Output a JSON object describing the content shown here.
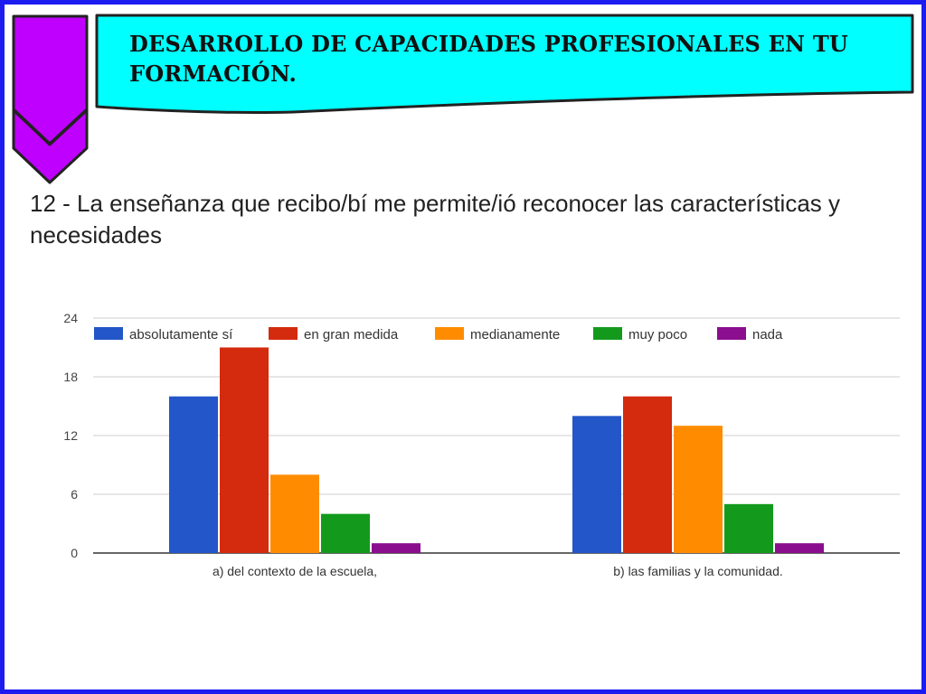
{
  "banner": {
    "title": "DESARROLLO DE CAPACIDADES PROFESIONALES EN TU FORMACIÓN."
  },
  "question": {
    "text": "12 - La enseñanza que recibo/bí me permite/ió reconocer las características y necesidades"
  },
  "colors": {
    "frame": "#1c1cf0",
    "banner_fill": "#00ffff",
    "arrow_fill": "#c000ff"
  },
  "icons": {
    "decoration": "double-chevron-down-icon"
  },
  "chart_data": {
    "type": "bar",
    "categories": [
      "a) del contexto de la escuela,",
      "b) las familias y la comunidad."
    ],
    "series": [
      {
        "name": "absolutamente sí",
        "color": "#2356c8",
        "values": [
          16,
          14
        ]
      },
      {
        "name": "en gran medida",
        "color": "#d42a0e",
        "values": [
          21,
          16
        ]
      },
      {
        "name": "medianamente",
        "color": "#ff8c00",
        "values": [
          8,
          13
        ]
      },
      {
        "name": "muy poco",
        "color": "#139a1c",
        "values": [
          4,
          5
        ]
      },
      {
        "name": "nada",
        "color": "#8a0e8e",
        "values": [
          1,
          1
        ]
      }
    ],
    "yticks": [
      0,
      6,
      12,
      18,
      24
    ],
    "ylim": [
      0,
      24
    ],
    "grid": true,
    "legend_position": "top-left"
  }
}
